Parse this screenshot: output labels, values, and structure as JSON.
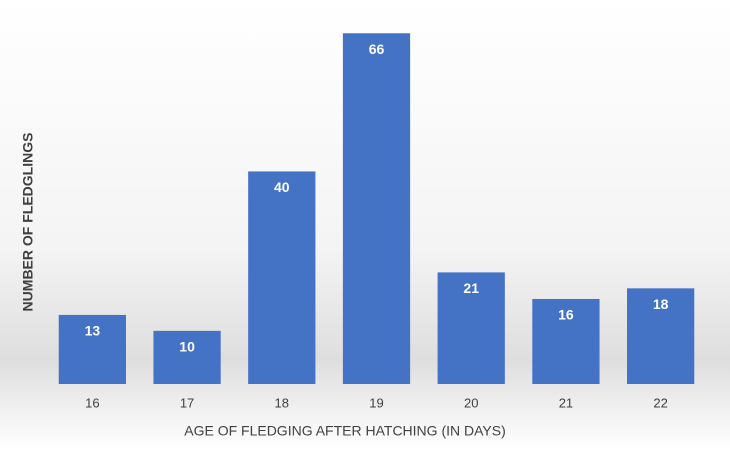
{
  "chart_data": {
    "type": "bar",
    "x_label": "AGE OF FLEDGING AFTER HATCHING (IN DAYS)",
    "y_label": "NUMBER OF FLEDGLINGS",
    "categories": [
      "16",
      "17",
      "18",
      "19",
      "20",
      "21",
      "22"
    ],
    "values": [
      13,
      10,
      40,
      66,
      21,
      16,
      18
    ],
    "color": "#4472c4",
    "ylim": [
      0,
      70
    ]
  }
}
